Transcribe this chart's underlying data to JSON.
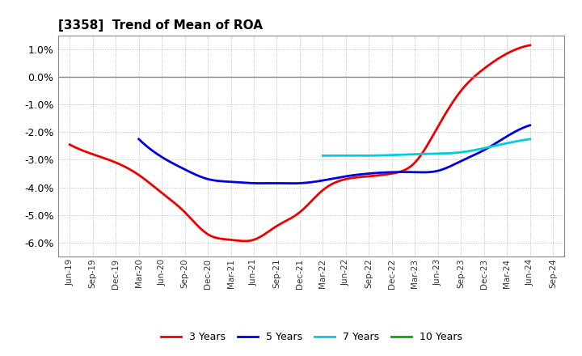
{
  "title": "[3358]  Trend of Mean of ROA",
  "ylim": [
    -0.065,
    0.015
  ],
  "yticks": [
    0.01,
    0.0,
    -0.01,
    -0.02,
    -0.03,
    -0.04,
    -0.05,
    -0.06
  ],
  "background_color": "#ffffff",
  "grid_color": "#b0b0b0",
  "series": {
    "3 Years": {
      "color": "#ee0000",
      "x": [
        "Jun-19",
        "Sep-19",
        "Dec-19",
        "Mar-20",
        "Jun-20",
        "Sep-20",
        "Dec-20",
        "Mar-21",
        "Jun-21",
        "Sep-21",
        "Dec-21",
        "Mar-22",
        "Jun-22",
        "Sep-22",
        "Dec-22",
        "Mar-23",
        "Jun-23",
        "Sep-23",
        "Dec-23",
        "Mar-24",
        "Jun-24"
      ],
      "y": [
        -0.0245,
        -0.028,
        -0.031,
        -0.0355,
        -0.042,
        -0.049,
        -0.057,
        -0.059,
        -0.059,
        -0.054,
        -0.049,
        -0.041,
        -0.037,
        -0.036,
        -0.035,
        -0.031,
        -0.018,
        -0.005,
        0.003,
        0.0085,
        0.0115
      ]
    },
    "5 Years": {
      "color": "#0000dd",
      "x": [
        "Mar-20",
        "Jun-20",
        "Sep-20",
        "Dec-20",
        "Mar-21",
        "Jun-21",
        "Sep-21",
        "Dec-21",
        "Mar-22",
        "Jun-22",
        "Sep-22",
        "Dec-22",
        "Mar-23",
        "Jun-23",
        "Sep-23",
        "Dec-23",
        "Mar-24",
        "Jun-24"
      ],
      "y": [
        -0.0225,
        -0.029,
        -0.0335,
        -0.037,
        -0.038,
        -0.0385,
        -0.0385,
        -0.0385,
        -0.0375,
        -0.036,
        -0.035,
        -0.0345,
        -0.0345,
        -0.034,
        -0.0305,
        -0.0265,
        -0.0215,
        -0.0175
      ]
    },
    "7 Years": {
      "color": "#00ccdd",
      "x": [
        "Mar-22",
        "Jun-22",
        "Sep-22",
        "Dec-22",
        "Mar-23",
        "Jun-23",
        "Sep-23",
        "Dec-23",
        "Mar-24",
        "Jun-24"
      ],
      "y": [
        -0.0285,
        -0.0285,
        -0.0285,
        -0.0283,
        -0.028,
        -0.0278,
        -0.0273,
        -0.0258,
        -0.024,
        -0.0225
      ]
    },
    "10 Years": {
      "color": "#00aa00",
      "x": [],
      "y": []
    }
  },
  "x_labels": [
    "Jun-19",
    "Sep-19",
    "Dec-19",
    "Mar-20",
    "Jun-20",
    "Sep-20",
    "Dec-20",
    "Mar-21",
    "Jun-21",
    "Sep-21",
    "Dec-21",
    "Mar-22",
    "Jun-22",
    "Sep-22",
    "Dec-22",
    "Mar-23",
    "Jun-23",
    "Sep-23",
    "Dec-23",
    "Mar-24",
    "Jun-24",
    "Sep-24"
  ],
  "legend_order": [
    "3 Years",
    "5 Years",
    "7 Years",
    "10 Years"
  ]
}
